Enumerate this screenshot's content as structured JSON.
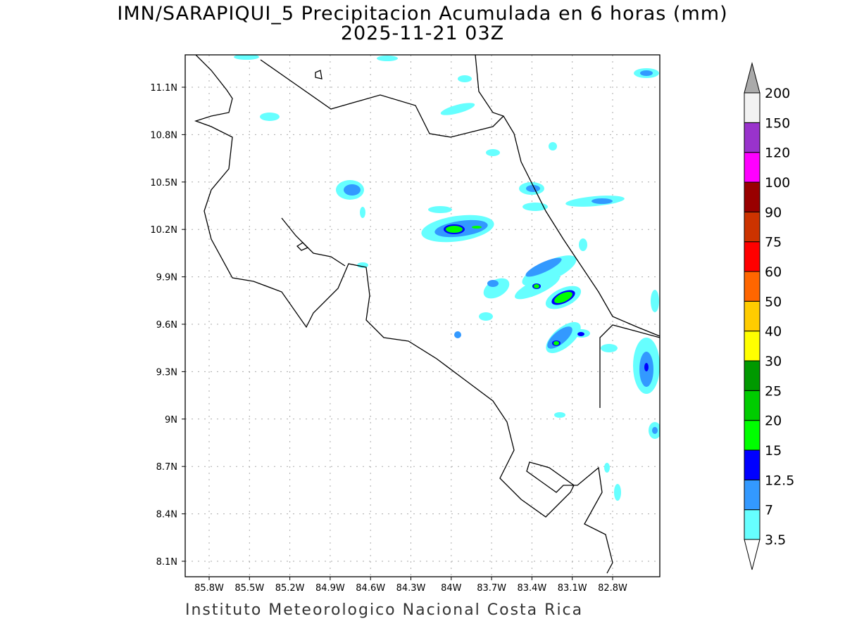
{
  "title": "IMN/SARAPIQUI_5 Precipitacion Acumulada en 6 horas (mm)",
  "subtitle": "2025-11-21 03Z",
  "footer": "Instituto Meteorologico Nacional Costa Rica",
  "axes": {
    "lon_ticks": [
      "85.8W",
      "85.5W",
      "85.2W",
      "84.9W",
      "84.6W",
      "84.3W",
      "84W",
      "83.7W",
      "83.4W",
      "83.1W",
      "82.8W"
    ],
    "lat_ticks": [
      "11.1N",
      "10.8N",
      "10.5N",
      "10.2N",
      "9.9N",
      "9.6N",
      "9.3N",
      "9N",
      "8.7N",
      "8.4N",
      "8.1N"
    ]
  },
  "colorbar": {
    "levels": [
      "3.5",
      "7",
      "12.5",
      "15",
      "20",
      "25",
      "30",
      "40",
      "50",
      "60",
      "75",
      "90",
      "100",
      "120",
      "150",
      "200"
    ],
    "colors": [
      "#66ffff",
      "#3399ff",
      "#0000ff",
      "#00ff00",
      "#00cc00",
      "#009900",
      "#ffff00",
      "#ffcc00",
      "#ff6600",
      "#ff0000",
      "#cc3300",
      "#990000",
      "#ff00ff",
      "#9933cc",
      "#f2f2f2"
    ],
    "over_color": "#aaaaaa",
    "under_color": "#ffffff"
  }
}
